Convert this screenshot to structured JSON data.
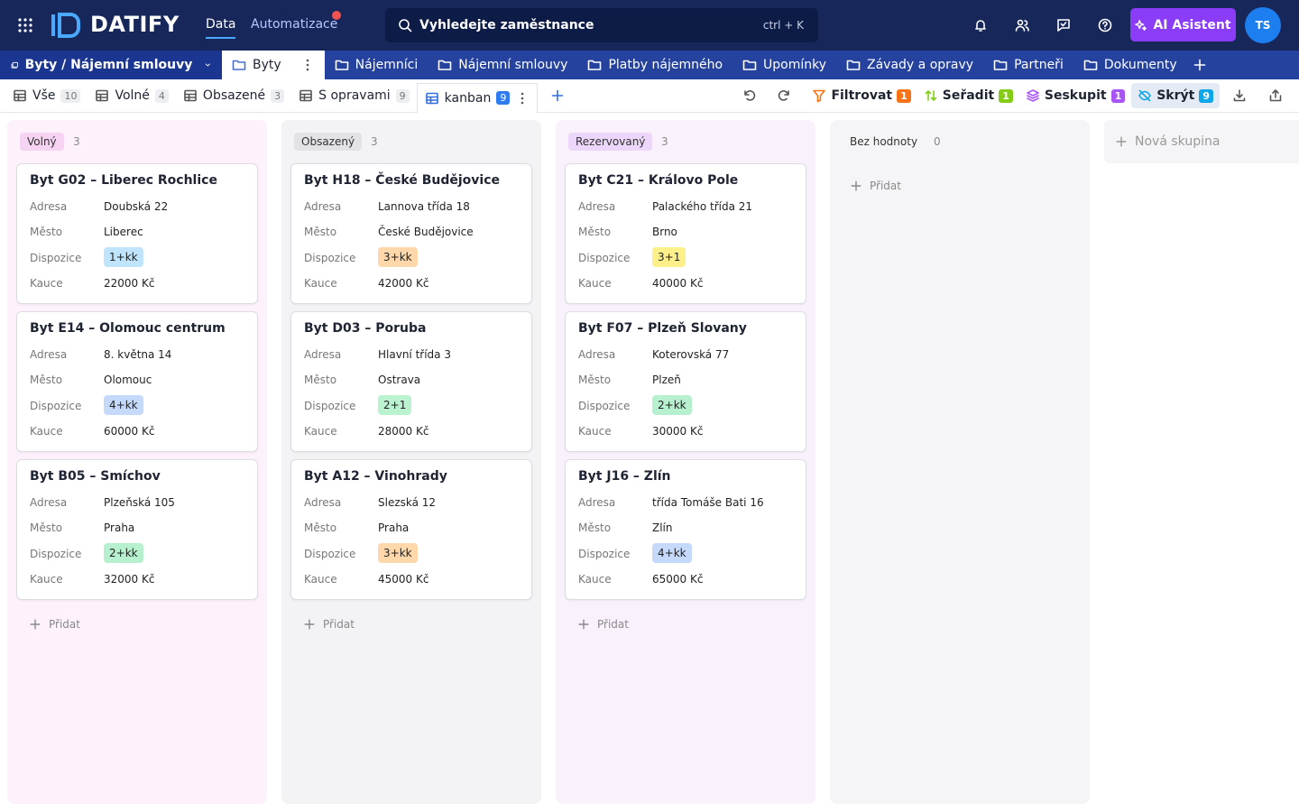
{
  "topbar": {
    "logo": "DATIFY",
    "nav": [
      "Data",
      "Automatizace"
    ],
    "search": "Vyhledejte zaměstnance",
    "shortcut": "ctrl + K",
    "ai": "AI Asistent",
    "avatar": "TS"
  },
  "tabs": {
    "breadcrumb": "Byty / Nájemní smlouvy",
    "items": [
      "Byty",
      "Nájemníci",
      "Nájemní smlouvy",
      "Platby nájemného",
      "Upomínky",
      "Závady a opravy",
      "Partneři",
      "Dokumenty"
    ]
  },
  "views": [
    {
      "name": "Vše",
      "count": "10"
    },
    {
      "name": "Volné",
      "count": "4"
    },
    {
      "name": "Obsazené",
      "count": "3"
    },
    {
      "name": "S opravami",
      "count": "9"
    },
    {
      "name": "kanban",
      "count": "9"
    }
  ],
  "toolbar": [
    {
      "label": "Filtrovat",
      "count": "1",
      "color": "#f97316"
    },
    {
      "label": "Seřadit",
      "count": "1",
      "color": "#84cc16"
    },
    {
      "label": "Seskupit",
      "count": "1",
      "color": "#a855f7"
    },
    {
      "label": "Skrýt",
      "count": "9",
      "color": "#0ea5e9"
    }
  ],
  "add_label": "Přidat",
  "new_group": "Nová skupina",
  "columns": [
    {
      "name": "Volný",
      "count": "3",
      "bg": "#fdf1fc",
      "pill": "#f7d3f3",
      "cards": [
        {
          "title": "Byt G02 – Liberec Rochlice",
          "fields": [
            {
              "label": "Adresa",
              "value": "Doubská 22"
            },
            {
              "label": "Město",
              "value": "Liberec"
            },
            {
              "label": "Dispozice",
              "value": "1+kk",
              "color": "#bfe4fb"
            },
            {
              "label": "Kauce",
              "value": "22000 Kč"
            }
          ]
        },
        {
          "title": "Byt E14 – Olomouc centrum",
          "fields": [
            {
              "label": "Adresa",
              "value": "8. května 14"
            },
            {
              "label": "Město",
              "value": "Olomouc"
            },
            {
              "label": "Dispozice",
              "value": "4+kk",
              "color": "#c5dafb"
            },
            {
              "label": "Kauce",
              "value": "60000 Kč"
            }
          ]
        },
        {
          "title": "Byt B05 – Smíchov",
          "fields": [
            {
              "label": "Adresa",
              "value": "Plzeňská 105"
            },
            {
              "label": "Město",
              "value": "Praha"
            },
            {
              "label": "Dispozice",
              "value": "2+kk",
              "color": "#b7f0cf"
            },
            {
              "label": "Kauce",
              "value": "32000 Kč"
            }
          ]
        }
      ]
    },
    {
      "name": "Obsazený",
      "count": "3",
      "bg": "#f3f3f5",
      "pill": "#e3e3e7",
      "cards": [
        {
          "title": "Byt H18 – České Budějovice",
          "fields": [
            {
              "label": "Adresa",
              "value": "Lannova třída 18"
            },
            {
              "label": "Město",
              "value": "České Budějovice"
            },
            {
              "label": "Dispozice",
              "value": "3+kk",
              "color": "#fed7aa"
            },
            {
              "label": "Kauce",
              "value": "42000 Kč"
            }
          ]
        },
        {
          "title": "Byt D03 – Poruba",
          "fields": [
            {
              "label": "Adresa",
              "value": "Hlavní třída 3"
            },
            {
              "label": "Město",
              "value": "Ostrava"
            },
            {
              "label": "Dispozice",
              "value": "2+1",
              "color": "#bbf2cf"
            },
            {
              "label": "Kauce",
              "value": "28000 Kč"
            }
          ]
        },
        {
          "title": "Byt A12 – Vinohrady",
          "fields": [
            {
              "label": "Adresa",
              "value": "Slezská 12"
            },
            {
              "label": "Město",
              "value": "Praha"
            },
            {
              "label": "Dispozice",
              "value": "3+kk",
              "color": "#fed7aa"
            },
            {
              "label": "Kauce",
              "value": "45000 Kč"
            }
          ]
        }
      ]
    },
    {
      "name": "Rezervovaný",
      "count": "3",
      "bg": "#f9f2fd",
      "pill": "#ecd6fa",
      "cards": [
        {
          "title": "Byt C21 – Královo Pole",
          "fields": [
            {
              "label": "Adresa",
              "value": "Palackého třída 21"
            },
            {
              "label": "Město",
              "value": "Brno"
            },
            {
              "label": "Dispozice",
              "value": "3+1",
              "color": "#fdf08a"
            },
            {
              "label": "Kauce",
              "value": "40000 Kč"
            }
          ]
        },
        {
          "title": "Byt F07 – Plzeň Slovany",
          "fields": [
            {
              "label": "Adresa",
              "value": "Koterovská 77"
            },
            {
              "label": "Město",
              "value": "Plzeň"
            },
            {
              "label": "Dispozice",
              "value": "2+kk",
              "color": "#b7f0cf"
            },
            {
              "label": "Kauce",
              "value": "30000 Kč"
            }
          ]
        },
        {
          "title": "Byt J16 – Zlín",
          "fields": [
            {
              "label": "Adresa",
              "value": "třída Tomáše Bati 16"
            },
            {
              "label": "Město",
              "value": "Zlín"
            },
            {
              "label": "Dispozice",
              "value": "4+kk",
              "color": "#c5dafb"
            },
            {
              "label": "Kauce",
              "value": "65000 Kč"
            }
          ]
        }
      ]
    },
    {
      "name": "Bez hodnoty",
      "count": "0",
      "bg": "#f5f5f7",
      "pill": "#f5f5f7",
      "cards": []
    }
  ]
}
